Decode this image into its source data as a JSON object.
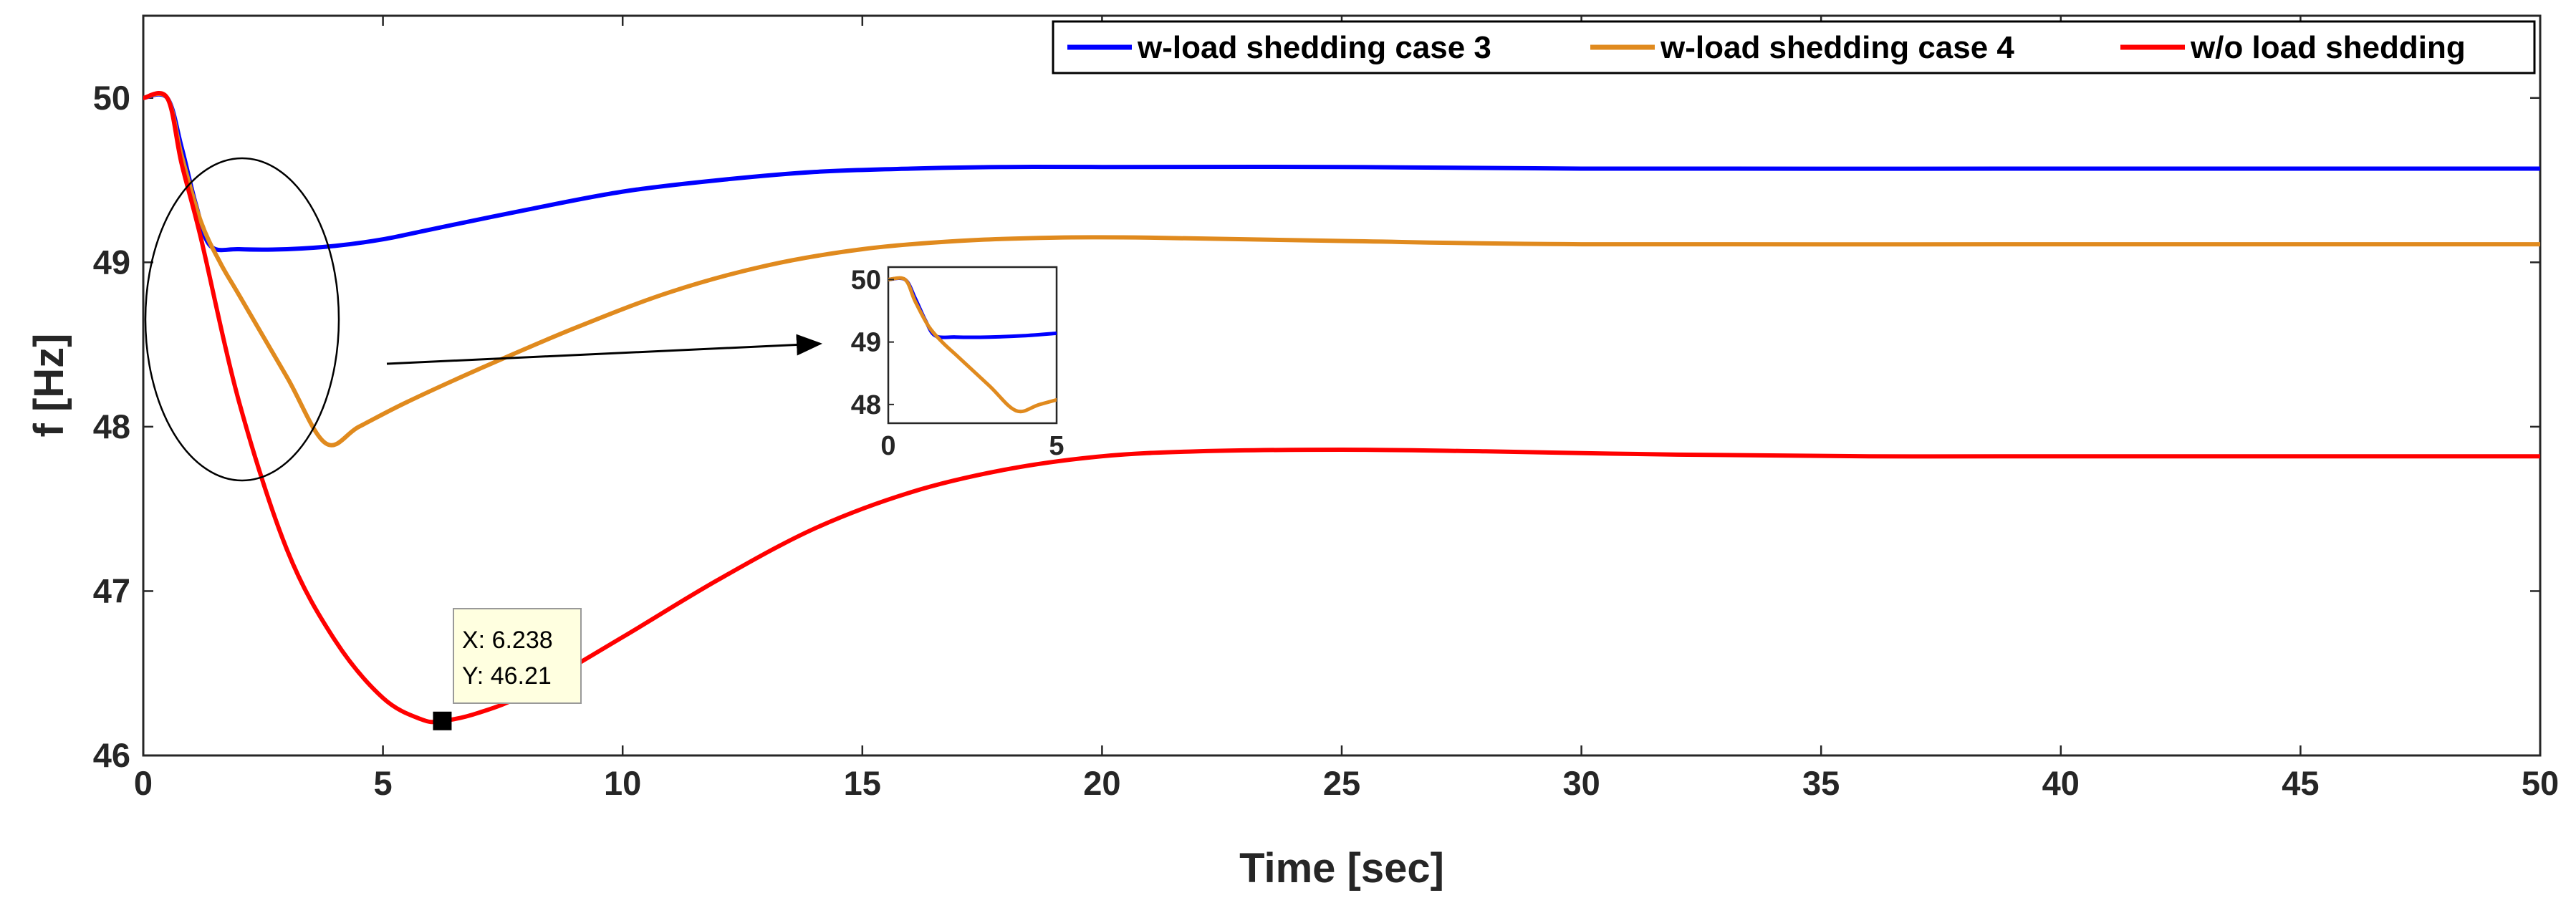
{
  "chart_data": {
    "type": "line",
    "xlabel": "Time [sec]",
    "ylabel": "f [Hz]",
    "xlim": [
      0,
      50
    ],
    "ylim": [
      46,
      50.5
    ],
    "xticks": [
      0,
      5,
      10,
      15,
      20,
      25,
      30,
      35,
      40,
      45,
      50
    ],
    "yticks": [
      46,
      47,
      48,
      49,
      50
    ],
    "grid": false,
    "legend_position": "top-right",
    "series": [
      {
        "name": "w-load shedding case 3",
        "color": "#0000ff",
        "x": [
          0,
          0.5,
          0.8,
          1.1,
          1.4,
          2.0,
          3.0,
          4.0,
          5.0,
          6.0,
          8.0,
          10.0,
          12.0,
          14.0,
          16.0,
          18.0,
          20.0,
          25.0,
          30.0,
          40.0,
          50.0
        ],
        "y": [
          50.0,
          50.0,
          49.7,
          49.35,
          49.1,
          49.08,
          49.08,
          49.1,
          49.14,
          49.2,
          49.32,
          49.43,
          49.5,
          49.55,
          49.57,
          49.58,
          49.58,
          49.58,
          49.57,
          49.57,
          49.57
        ]
      },
      {
        "name": "w-load shedding case 4",
        "color": "#e08a1e",
        "x": [
          0,
          0.5,
          0.8,
          1.2,
          1.6,
          2.0,
          3.0,
          3.8,
          4.5,
          5.5,
          7.0,
          9.0,
          11.0,
          13.0,
          15.0,
          17.0,
          19.0,
          21.0,
          25.0,
          30.0,
          40.0,
          50.0
        ],
        "y": [
          50.0,
          50.0,
          49.65,
          49.25,
          49.0,
          48.8,
          48.3,
          47.9,
          48.0,
          48.15,
          48.35,
          48.6,
          48.82,
          48.98,
          49.08,
          49.13,
          49.15,
          49.15,
          49.13,
          49.11,
          49.11,
          49.11
        ]
      },
      {
        "name": "w/o load shedding",
        "color": "#ff0000",
        "x": [
          0,
          0.5,
          0.8,
          1.2,
          2.0,
          3.0,
          4.0,
          5.0,
          5.8,
          6.238,
          7.0,
          8.0,
          10.0,
          12.0,
          14.0,
          16.0,
          18.0,
          20.0,
          22.0,
          25.0,
          28.0,
          32.0,
          36.0,
          40.0,
          45.0,
          50.0
        ],
        "y": [
          50.0,
          50.0,
          49.6,
          49.15,
          48.15,
          47.25,
          46.7,
          46.35,
          46.22,
          46.21,
          46.26,
          46.38,
          46.72,
          47.07,
          47.38,
          47.6,
          47.74,
          47.82,
          47.85,
          47.86,
          47.85,
          47.83,
          47.82,
          47.82,
          47.82,
          47.82
        ]
      }
    ],
    "annotations": {
      "datatip": {
        "x": 6.238,
        "y": 46.21,
        "x_text": "X: 6.238",
        "y_text": "Y: 46.21"
      }
    },
    "inset": {
      "xlim": [
        0,
        5
      ],
      "ylim": [
        47.7,
        50.2
      ],
      "xticks": [
        0,
        5
      ],
      "yticks": [
        48,
        49,
        50
      ],
      "series_shown": [
        "w-load shedding case 3",
        "w-load shedding case 4"
      ]
    }
  }
}
